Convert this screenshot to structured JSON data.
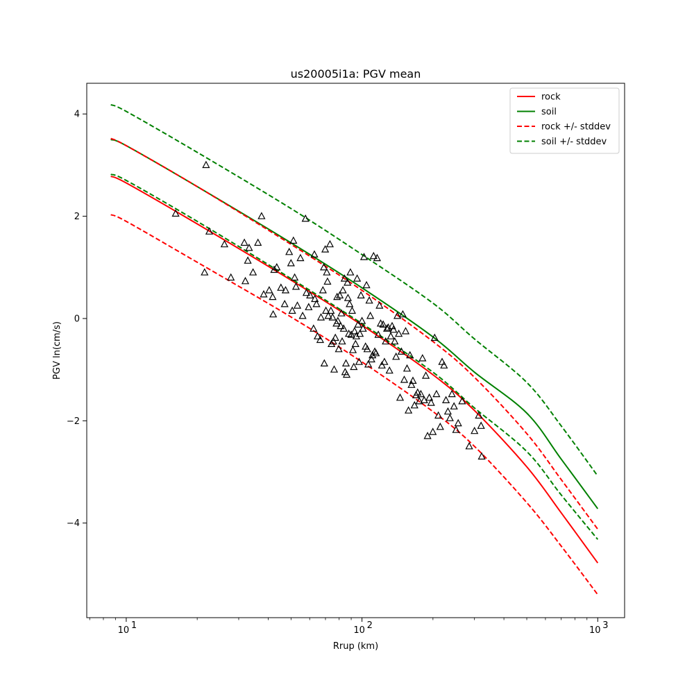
{
  "chart_data": {
    "type": "line",
    "title": "us20005i1a: PGV mean",
    "xlabel": "Rrup (km)",
    "ylabel": "PGV ln(cm/s)",
    "xscale": "log",
    "xlim": [
      6.8,
      1300
    ],
    "ylim": [
      -5.85,
      4.6
    ],
    "xticks": [
      {
        "value": 10,
        "label": "10",
        "exp": "1"
      },
      {
        "value": 100,
        "label": "10",
        "exp": "2"
      },
      {
        "value": 1000,
        "label": "10",
        "exp": "3"
      }
    ],
    "yticks": [
      {
        "value": 4,
        "label": "4"
      },
      {
        "value": 2,
        "label": "2"
      },
      {
        "value": 0,
        "label": "0"
      },
      {
        "value": -2,
        "label": "−2"
      },
      {
        "value": -4,
        "label": "−4"
      }
    ],
    "legend_position": "top-right",
    "grid": false,
    "series": [
      {
        "name": "rock",
        "color": "#ff0000",
        "style": "solid",
        "x": [
          8.6,
          10,
          20,
          50,
          100,
          200,
          300,
          500,
          700,
          1000
        ],
        "y": [
          2.78,
          2.65,
          1.85,
          0.75,
          -0.13,
          -1.1,
          -1.8,
          -2.9,
          -3.8,
          -4.78
        ]
      },
      {
        "name": "soil",
        "color": "#008000",
        "style": "solid",
        "x": [
          8.6,
          10,
          20,
          50,
          100,
          200,
          300,
          500,
          700,
          1000
        ],
        "y": [
          3.5,
          3.38,
          2.58,
          1.48,
          0.6,
          -0.36,
          -1.05,
          -1.85,
          -2.75,
          -3.72
        ]
      },
      {
        "name": "rock +/- stddev",
        "color": "#ff0000",
        "style": "dashed",
        "x": [
          8.6,
          10,
          20,
          50,
          100,
          200,
          300,
          500,
          700,
          1000
        ],
        "y": [
          3.52,
          3.38,
          2.58,
          1.45,
          0.55,
          -0.45,
          -1.15,
          -2.25,
          -3.15,
          -4.12
        ]
      },
      {
        "name": "rock +/- stddev",
        "color": "#ff0000",
        "style": "dashed",
        "legend": false,
        "x": [
          8.6,
          10,
          20,
          50,
          100,
          200,
          300,
          500,
          700,
          1000
        ],
        "y": [
          2.03,
          1.9,
          1.1,
          0.03,
          -0.85,
          -1.82,
          -2.5,
          -3.6,
          -4.45,
          -5.4
        ]
      },
      {
        "name": "soil +/- stddev",
        "color": "#008000",
        "style": "dashed",
        "x": [
          8.6,
          10,
          20,
          50,
          100,
          200,
          300,
          500,
          700,
          1000
        ],
        "y": [
          4.18,
          4.05,
          3.25,
          2.15,
          1.25,
          0.3,
          -0.4,
          -1.25,
          -2.1,
          -3.08
        ]
      },
      {
        "name": "soil +/- stddev",
        "color": "#008000",
        "style": "dashed",
        "legend": false,
        "x": [
          8.6,
          10,
          20,
          50,
          100,
          200,
          300,
          500,
          700,
          1000
        ],
        "y": [
          2.82,
          2.7,
          1.9,
          0.78,
          -0.1,
          -1.05,
          -1.75,
          -2.6,
          -3.45,
          -4.32
        ]
      }
    ],
    "observations": {
      "marker": "triangle-open",
      "color": "#000000",
      "x": [
        16.2,
        21.5,
        21.8,
        22.5,
        26.1,
        27.8,
        31.7,
        32.0,
        32.8,
        33.2,
        34.5,
        36.2,
        37.5,
        38.3,
        40.4,
        41.8,
        42.0,
        42.4,
        43.5,
        45.3,
        47.0,
        47.4,
        49.1,
        50.0,
        50.6,
        51.2,
        51.8,
        52.5,
        53.2,
        54.8,
        56.0,
        57.6,
        58.1,
        59.4,
        60.2,
        62.3,
        62.8,
        63.1,
        64.1,
        64.8,
        66.5,
        67.0,
        68.3,
        68.9,
        69.2,
        69.8,
        70.3,
        70.9,
        71.4,
        72.0,
        73.1,
        73.8,
        74.2,
        75.0,
        75.6,
        76.2,
        77.1,
        77.9,
        78.4,
        79.0,
        79.7,
        80.5,
        81.2,
        81.8,
        82.4,
        83.0,
        83.6,
        84.3,
        84.8,
        85.5,
        86.1,
        86.8,
        87.2,
        87.9,
        88.6,
        89.3,
        90.0,
        90.8,
        91.5,
        92.3,
        93.0,
        93.9,
        94.6,
        95.4,
        96.3,
        97.2,
        98.0,
        99.0,
        100.0,
        101.0,
        102.0,
        103.5,
        104.5,
        105.3,
        106.3,
        107.4,
        108.5,
        109.7,
        110.8,
        112.0,
        113.3,
        114.6,
        115.9,
        117.3,
        118.6,
        120.0,
        121.5,
        123.0,
        124.5,
        126.0,
        127.6,
        129.2,
        130.8,
        132.5,
        134.2,
        136.0,
        137.7,
        139.5,
        141.3,
        143.2,
        145.1,
        147.0,
        149.0,
        151.1,
        153.2,
        155.3,
        157.5,
        159.8,
        162.1,
        164.5,
        167.0,
        169.6,
        172.2,
        175.0,
        177.7,
        180.6,
        183.6,
        186.6,
        189.8,
        193.0,
        196.4,
        199.8,
        203.4,
        207.0,
        210.8,
        214.7,
        218.7,
        222.9,
        227.1,
        231.5,
        236.1,
        240.8,
        245.6,
        250.6,
        255.8,
        266.0,
        285.0,
        300.0,
        313.0,
        320.0,
        322.0
      ],
      "y": [
        2.05,
        0.9,
        3.0,
        1.7,
        1.45,
        0.8,
        1.48,
        0.73,
        1.13,
        1.38,
        0.9,
        1.48,
        2.0,
        0.47,
        0.55,
        0.42,
        0.08,
        0.95,
        1.0,
        0.6,
        0.28,
        0.55,
        1.3,
        1.08,
        0.15,
        1.52,
        0.8,
        0.62,
        0.25,
        1.18,
        0.05,
        1.95,
        0.5,
        0.22,
        0.45,
        -0.2,
        1.25,
        0.38,
        0.28,
        -0.35,
        -0.42,
        0.02,
        0.55,
        1.0,
        -0.88,
        1.35,
        0.15,
        0.9,
        0.72,
        0.05,
        1.45,
        0.15,
        -0.5,
        0.02,
        -0.45,
        -1.0,
        -0.38,
        -0.1,
        0.42,
        -0.05,
        -0.6,
        0.45,
        -0.15,
        0.1,
        -0.45,
        0.55,
        -0.2,
        0.78,
        -1.05,
        -0.88,
        -1.1,
        0.7,
        0.4,
        -0.3,
        0.28,
        0.9,
        -0.32,
        0.15,
        -0.62,
        -0.95,
        -0.25,
        -0.5,
        -0.35,
        0.78,
        -0.12,
        -0.85,
        -0.3,
        0.45,
        -0.05,
        -0.2,
        1.2,
        -0.55,
        0.65,
        -0.6,
        -0.9,
        0.35,
        0.05,
        -0.8,
        -0.72,
        1.22,
        -0.65,
        -0.68,
        1.18,
        -0.32,
        0.25,
        -0.1,
        -0.92,
        -0.12,
        -0.85,
        -0.45,
        -0.2,
        -0.18,
        -1.02,
        -0.35,
        -0.15,
        -0.22,
        -0.45,
        -0.75,
        0.05,
        -0.3,
        -1.55,
        -0.65,
        0.08,
        -1.2,
        -0.25,
        -0.98,
        -1.8,
        -0.72,
        -1.3,
        -1.22,
        -1.7,
        -1.5,
        -1.45,
        -1.62,
        -1.48,
        -0.78,
        -1.6,
        -1.12,
        -2.3,
        -1.55,
        -1.65,
        -2.22,
        -0.38,
        -1.48,
        -1.9,
        -2.12,
        -0.85,
        -0.92,
        -1.6,
        -1.82,
        -1.95,
        -1.48,
        -1.72,
        -2.18,
        -2.05,
        -1.62,
        -2.5,
        -2.2,
        -1.9,
        -2.1,
        -2.7
      ]
    }
  }
}
